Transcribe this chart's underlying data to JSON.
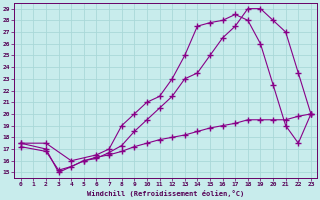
{
  "xlabel": "Windchill (Refroidissement éolien,°C)",
  "bg_color": "#c8ecec",
  "grid_color": "#aad8d8",
  "line_color": "#880088",
  "xlim": [
    -0.5,
    23.5
  ],
  "ylim": [
    14.5,
    29.5
  ],
  "xticks": [
    0,
    1,
    2,
    3,
    4,
    5,
    6,
    7,
    8,
    9,
    10,
    11,
    12,
    13,
    14,
    15,
    16,
    17,
    18,
    19,
    20,
    21,
    22,
    23
  ],
  "yticks": [
    15,
    16,
    17,
    18,
    19,
    20,
    21,
    22,
    23,
    24,
    25,
    26,
    27,
    28,
    29
  ],
  "line1_x": [
    0,
    2,
    3,
    5,
    6,
    7,
    8,
    9,
    10,
    11,
    12,
    13,
    14,
    15,
    16,
    17,
    18,
    19,
    20,
    21,
    22,
    23
  ],
  "line1_y": [
    17.5,
    17.0,
    15.0,
    16.0,
    16.2,
    16.7,
    17.3,
    18.5,
    19.5,
    20.5,
    21.5,
    23.0,
    23.5,
    25.0,
    26.5,
    27.5,
    29.0,
    29.0,
    28.0,
    27.0,
    23.5,
    20.0
  ],
  "line2_x": [
    0,
    2,
    4,
    6,
    7,
    8,
    9,
    10,
    11,
    12,
    13,
    14,
    15,
    16,
    17,
    18,
    19,
    20,
    21,
    22,
    23
  ],
  "line2_y": [
    17.5,
    17.5,
    16.0,
    16.5,
    17.0,
    19.0,
    20.0,
    21.0,
    21.5,
    23.0,
    25.0,
    27.5,
    27.8,
    28.0,
    28.5,
    28.0,
    26.0,
    22.5,
    19.0,
    17.5,
    20.0
  ],
  "line3_x": [
    0,
    2,
    3,
    4,
    5,
    6,
    7,
    8,
    9,
    10,
    11,
    12,
    13,
    14,
    15,
    16,
    17,
    18,
    19,
    20,
    21,
    22,
    23
  ],
  "line3_y": [
    17.2,
    16.8,
    15.2,
    15.5,
    16.0,
    16.3,
    16.5,
    16.8,
    17.2,
    17.5,
    17.8,
    18.0,
    18.2,
    18.5,
    18.8,
    19.0,
    19.2,
    19.5,
    19.5,
    19.5,
    19.5,
    19.8,
    20.0
  ]
}
